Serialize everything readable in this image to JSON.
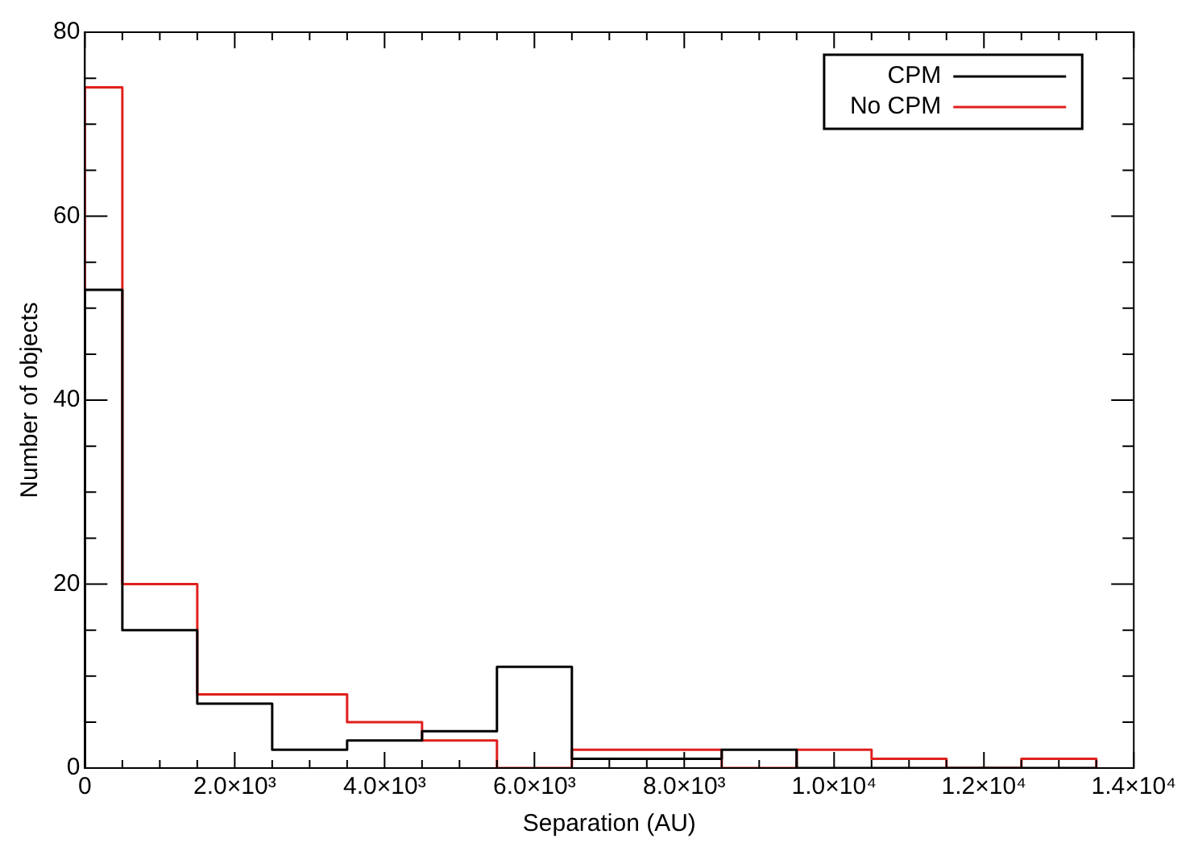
{
  "chart_data": {
    "type": "histogram",
    "xlabel": "Separation (AU)",
    "ylabel": "Number of objects",
    "bins": [
      0,
      500,
      1500,
      2500,
      3500,
      4500,
      5500,
      6500,
      7500,
      8500,
      9500,
      10500,
      11500,
      12500,
      13500
    ],
    "series": [
      {
        "name": "CPM",
        "color": "#000000",
        "values": [
          52,
          15,
          7,
          2,
          3,
          4,
          11,
          1,
          1,
          2,
          0,
          0,
          0,
          0
        ]
      },
      {
        "name": "No CPM",
        "color": "#e0201c",
        "values": [
          74,
          20,
          8,
          8,
          5,
          3,
          0,
          2,
          2,
          0,
          2,
          1,
          0,
          1
        ]
      }
    ],
    "xlim": [
      0,
      14000
    ],
    "xticks": [
      {
        "value": 0,
        "label": "0"
      },
      {
        "value": 500,
        "label": null
      },
      {
        "value": 1000,
        "label": null
      },
      {
        "value": 1500,
        "label": null
      },
      {
        "value": 2000,
        "label": "2.0×10³"
      },
      {
        "value": 2500,
        "label": null
      },
      {
        "value": 3000,
        "label": null
      },
      {
        "value": 3500,
        "label": null
      },
      {
        "value": 4000,
        "label": "4.0×10³"
      },
      {
        "value": 4500,
        "label": null
      },
      {
        "value": 5000,
        "label": null
      },
      {
        "value": 5500,
        "label": null
      },
      {
        "value": 6000,
        "label": "6.0×10³"
      },
      {
        "value": 6500,
        "label": null
      },
      {
        "value": 7000,
        "label": null
      },
      {
        "value": 7500,
        "label": null
      },
      {
        "value": 8000,
        "label": "8.0×10³"
      },
      {
        "value": 8500,
        "label": null
      },
      {
        "value": 9000,
        "label": null
      },
      {
        "value": 9500,
        "label": null
      },
      {
        "value": 10000,
        "label": "1.0×10⁴"
      },
      {
        "value": 10500,
        "label": null
      },
      {
        "value": 11000,
        "label": null
      },
      {
        "value": 11500,
        "label": null
      },
      {
        "value": 12000,
        "label": "1.2×10⁴"
      },
      {
        "value": 12500,
        "label": null
      },
      {
        "value": 13000,
        "label": null
      },
      {
        "value": 13500,
        "label": null
      },
      {
        "value": 14000,
        "label": "1.4×10⁴"
      }
    ],
    "ylim": [
      0,
      80
    ],
    "yticks": [
      0,
      {
        "value": 5,
        "label": null
      },
      {
        "value": 10,
        "label": null
      },
      {
        "value": 15,
        "label": null
      },
      20,
      {
        "value": 25,
        "label": null
      },
      {
        "value": 30,
        "label": null
      },
      {
        "value": 35,
        "label": null
      },
      40,
      {
        "value": 45,
        "label": null
      },
      {
        "value": 50,
        "label": null
      },
      {
        "value": 55,
        "label": null
      },
      60,
      {
        "value": 65,
        "label": null
      },
      {
        "value": 70,
        "label": null
      },
      {
        "value": 75,
        "label": null
      },
      80
    ],
    "grid": false,
    "legend": "top right"
  }
}
